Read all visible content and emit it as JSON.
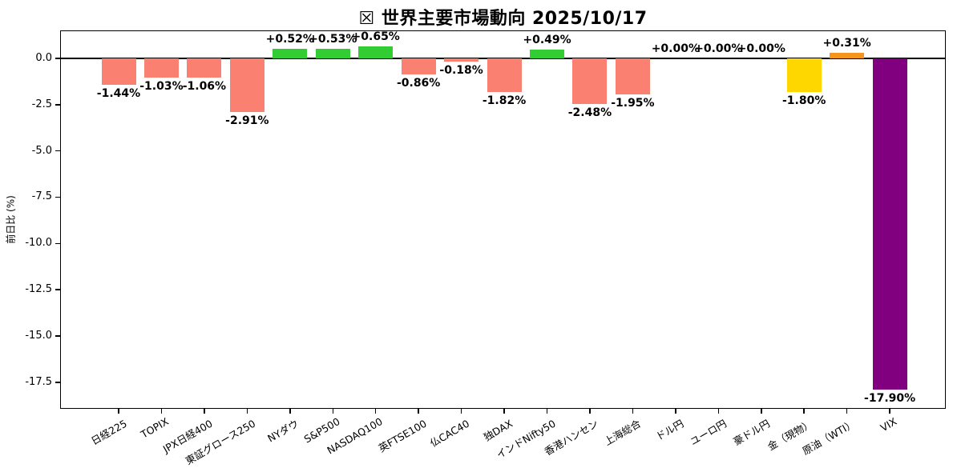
{
  "chart_data": {
    "type": "bar",
    "title": "☒ 世界主要市場動向 2025/10/17",
    "ylabel": "前日比 (%)",
    "xlabel": "",
    "ylim": [
      -18.93,
      1.51
    ],
    "grid": false,
    "legend": "none",
    "yticks": [
      0.0,
      -2.5,
      -5.0,
      -7.5,
      -10.0,
      -12.5,
      -15.0,
      -17.5
    ],
    "ytick_labels": [
      "0.0",
      "-2.5",
      "-5.0",
      "-7.5",
      "-10.0",
      "-12.5",
      "-15.0",
      "-17.5"
    ],
    "categories": [
      "日経225",
      "TOPIX",
      "JPX日経400",
      "東証グロース250",
      "NYダウ",
      "S&P500",
      "NASDAQ100",
      "英FTSE100",
      "仏CAC40",
      "独DAX",
      "インドNifty50",
      "香港ハンセン",
      "上海総合",
      "ドル円",
      "ユーロ円",
      "豪ドル円",
      "金（現物）",
      "原油（WTI）",
      "VIX"
    ],
    "values": [
      -1.44,
      -1.03,
      -1.06,
      -2.91,
      0.52,
      0.53,
      0.65,
      -0.86,
      -0.18,
      -1.82,
      0.49,
      -2.48,
      -1.95,
      0.0,
      0.0,
      0.0,
      -1.8,
      0.31,
      -17.9
    ],
    "value_labels": [
      "-1.44%",
      "-1.03%",
      "-1.06%",
      "-2.91%",
      "+0.52%",
      "+0.53%",
      "+0.65%",
      "-0.86%",
      "-0.18%",
      "-1.82%",
      "+0.49%",
      "-2.48%",
      "-1.95%",
      "+0.00%",
      "+0.00%",
      "+0.00%",
      "-1.80%",
      "+0.31%",
      "-17.90%"
    ],
    "bar_colors": [
      "#FA8072",
      "#FA8072",
      "#FA8072",
      "#FA8072",
      "#32CD32",
      "#32CD32",
      "#32CD32",
      "#FA8072",
      "#FA8072",
      "#FA8072",
      "#32CD32",
      "#FA8072",
      "#FA8072",
      "#CCCCCC",
      "#CCCCCC",
      "#CCCCCC",
      "#FFD700",
      "#F7941D",
      "#800080"
    ],
    "color_legend": {
      "equity_down": "#FA8072",
      "equity_up": "#32CD32",
      "gold": "#FFD700",
      "oil": "#F7941D",
      "vix": "#800080",
      "axis": "#000000"
    }
  }
}
